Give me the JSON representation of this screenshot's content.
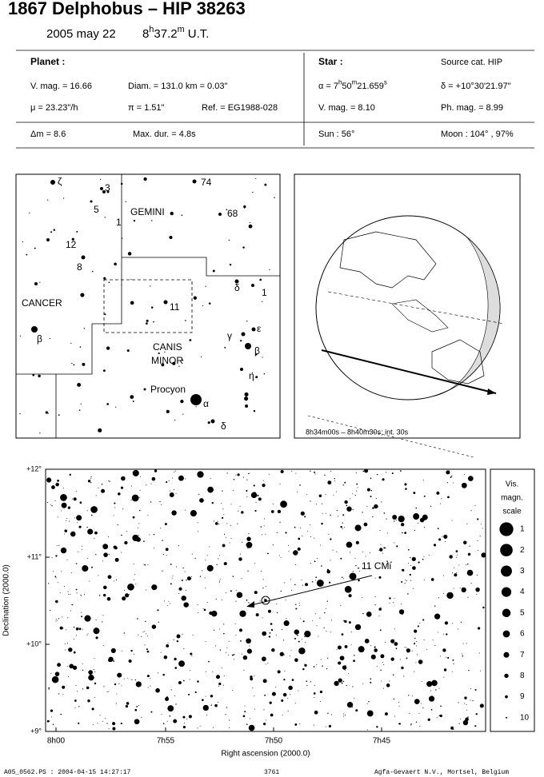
{
  "header": {
    "title": "1867 Delphobus  –  HIP 38263",
    "date": "2005 may 22",
    "time": [
      "8",
      "h",
      "37.2",
      "m",
      " U.T."
    ]
  },
  "planet": {
    "label": "Planet :",
    "vmag": "V. mag. = 16.66",
    "diam": "Diam. = 131.0 km = 0.03\"",
    "mu": "μ = 23.23\"/h",
    "parallax": "π = 1.51\"",
    "ref": "Ref. = EG1988-028",
    "dm": "Δm = 8.6",
    "maxdur": "Max. dur. = 4.8s"
  },
  "star": {
    "label": "Star :",
    "source": "Source cat.  HIP",
    "ra": [
      "α = 7",
      "h",
      "50",
      "m",
      "21.659",
      "s"
    ],
    "dec": "δ = +10°30'21.97\"",
    "vmag": "V. mag. = 8.10",
    "phmag": "Ph. mag. = 8.99",
    "sun": "Sun :  56°",
    "moon": "Moon : 104° , 97%"
  },
  "finder": {
    "labels": [
      "ζ",
      "3",
      "5",
      "1",
      "GEMINI",
      "74",
      "68",
      "12",
      "8",
      "CANCER",
      "β",
      "11",
      "δ",
      "1",
      "γ",
      "ε",
      "β",
      "η",
      "CANIS",
      "MINOR",
      "Procyon",
      "α",
      "δ"
    ]
  },
  "globe": {
    "caption": "8h34m00s – 8h40m30s; int. 30s"
  },
  "field": {
    "x_label": "Right ascension (2000.0)",
    "y_label": "Declination (2000.0)",
    "x_ticks": [
      "8h00",
      "7h55",
      "7h50",
      "7h45"
    ],
    "y_ticks": [
      "+12°",
      "+11°",
      "+10°",
      "+9°"
    ],
    "star_label": "11 CMi"
  },
  "scale": {
    "title": [
      "Vis.",
      "magn.",
      "scale"
    ],
    "magnitudes": [
      1,
      2,
      3,
      4,
      5,
      6,
      7,
      8,
      9,
      10
    ]
  },
  "footer": {
    "file": "A05_0562.PS : 2004-04-15 14:27:17",
    "id": "3761",
    "company": "Agfa-Gevaert N.V., Mortsel, Belgium"
  }
}
